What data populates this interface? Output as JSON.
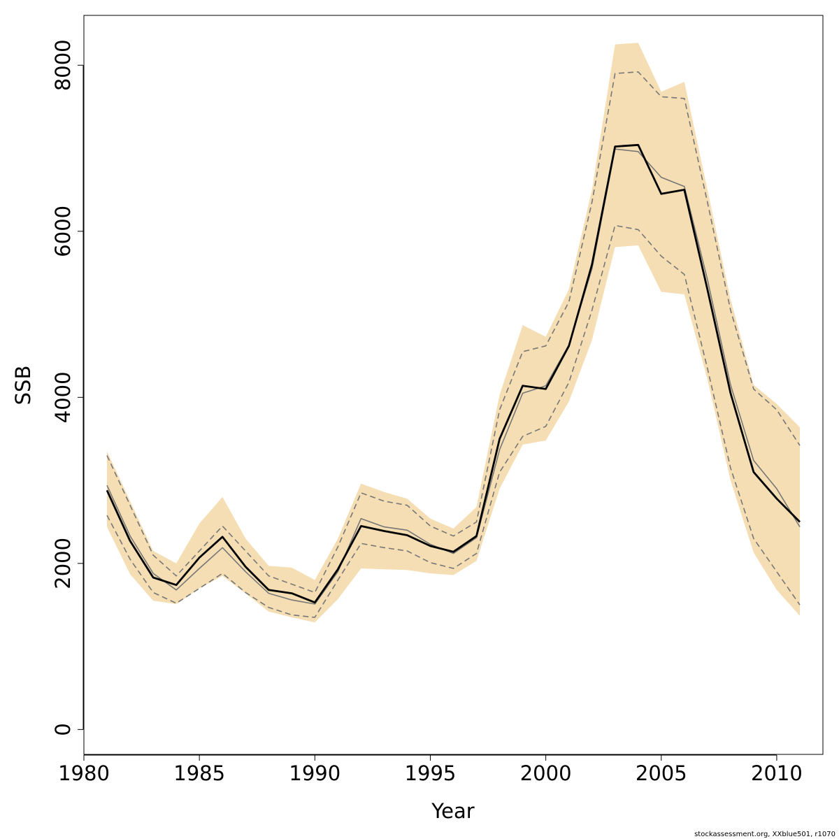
{
  "chart_data": {
    "type": "line",
    "xlabel": "Year",
    "ylabel": "SSB",
    "xlim": [
      1980,
      2012
    ],
    "ylim": [
      -300,
      8600
    ],
    "x_ticks": [
      1980,
      1985,
      1990,
      1995,
      2000,
      2005,
      2010
    ],
    "y_ticks": [
      0,
      2000,
      4000,
      6000,
      8000
    ],
    "grid": false,
    "legend": "none",
    "x": [
      1981,
      1982,
      1983,
      1984,
      1985,
      1986,
      1987,
      1988,
      1989,
      1990,
      1991,
      1992,
      1993,
      1994,
      1995,
      1996,
      1997,
      1998,
      1999,
      2000,
      2001,
      2002,
      2003,
      2004,
      2005,
      2006,
      2007,
      2008,
      2009,
      2010,
      2011
    ],
    "series": [
      {
        "role": "estimate",
        "color": "#000000",
        "values": [
          2880,
          2270,
          1830,
          1740,
          2070,
          2320,
          1960,
          1680,
          1640,
          1530,
          1930,
          2450,
          2390,
          2340,
          2210,
          2140,
          2330,
          3500,
          4140,
          4100,
          4620,
          5600,
          7020,
          7040,
          6450,
          6500,
          5300,
          4050,
          3100,
          2780,
          2500
        ]
      },
      {
        "role": "upper-dashed",
        "color": "#777777",
        "values": [
          3300,
          2700,
          2100,
          1850,
          2150,
          2450,
          2150,
          1850,
          1750,
          1650,
          2200,
          2850,
          2750,
          2700,
          2450,
          2330,
          2500,
          3850,
          4550,
          4620,
          5150,
          6350,
          7900,
          7920,
          7620,
          7600,
          6350,
          5050,
          4100,
          3850,
          3420
        ]
      },
      {
        "role": "lower-dashed",
        "color": "#777777",
        "values": [
          2580,
          2050,
          1650,
          1520,
          1700,
          1880,
          1650,
          1470,
          1380,
          1350,
          1800,
          2240,
          2190,
          2150,
          2010,
          1940,
          2120,
          3100,
          3530,
          3650,
          4180,
          5050,
          6070,
          6020,
          5700,
          5480,
          4350,
          3150,
          2300,
          1900,
          1500
        ]
      },
      {
        "role": "thin-line",
        "color": "#777777",
        "values": [
          2940,
          2330,
          1880,
          1680,
          1940,
          2190,
          1900,
          1640,
          1560,
          1510,
          1900,
          2540,
          2440,
          2400,
          2230,
          2120,
          2310,
          3370,
          4050,
          4140,
          4630,
          5550,
          6990,
          6960,
          6650,
          6540,
          5420,
          4150,
          3240,
          2900,
          2440
        ]
      }
    ],
    "band": {
      "color": "#f5deb3",
      "upper": [
        3350,
        2750,
        2150,
        2000,
        2480,
        2800,
        2300,
        1970,
        1950,
        1800,
        2300,
        2960,
        2860,
        2780,
        2540,
        2420,
        2680,
        4030,
        4870,
        4730,
        5300,
        6500,
        8250,
        8270,
        7680,
        7800,
        6500,
        5180,
        4150,
        3920,
        3640
      ],
      "lower": [
        2440,
        1870,
        1550,
        1510,
        1700,
        1850,
        1640,
        1420,
        1350,
        1290,
        1570,
        1940,
        1930,
        1920,
        1880,
        1860,
        2030,
        2900,
        3430,
        3480,
        3950,
        4690,
        5810,
        5830,
        5270,
        5240,
        4220,
        3000,
        2130,
        1680,
        1370
      ]
    }
  },
  "footer_text": "stockassessment.org, XXblue501, r1070"
}
